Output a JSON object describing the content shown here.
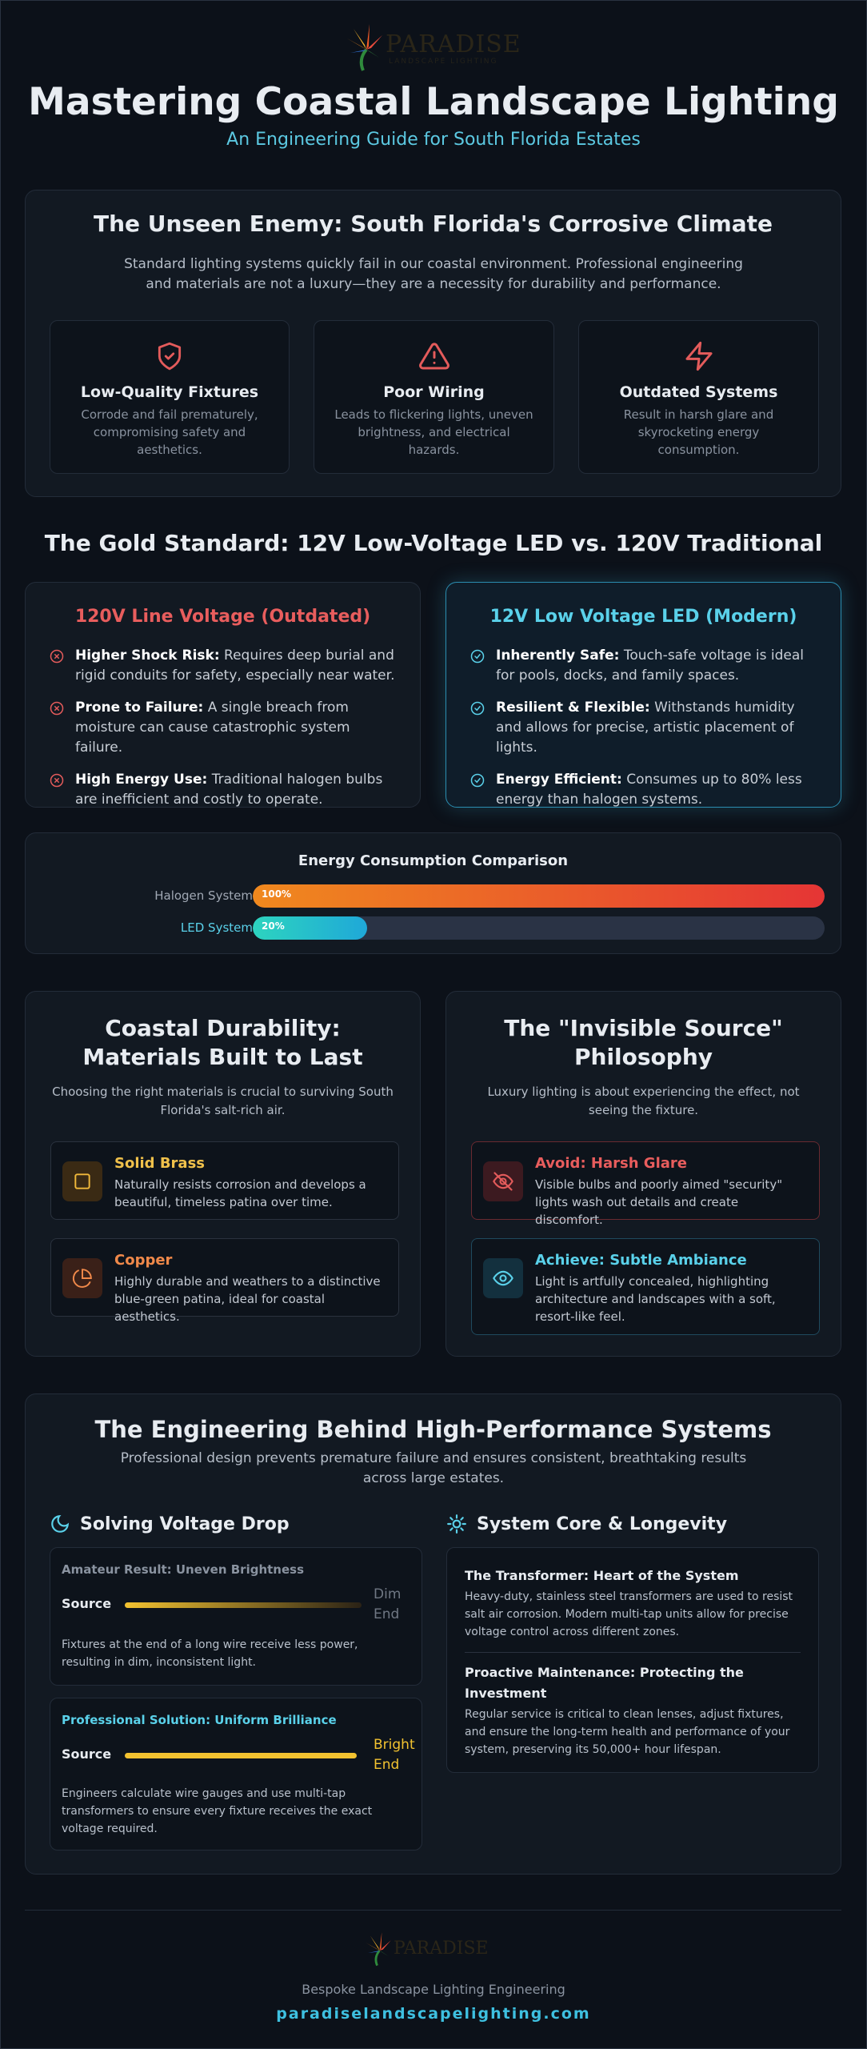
{
  "header": {
    "logo_name": "PARADISE",
    "logo_tagline": "LANDSCAPE LIGHTING",
    "title": "Mastering Coastal Landscape Lighting",
    "subtitle": "An Engineering Guide for South Florida Estates"
  },
  "climate": {
    "title": "The Unseen Enemy: South Florida's Corrosive Climate",
    "intro": "Standard lighting systems quickly fail in our coastal environment. Professional engineering and materials are not a luxury—they are a necessity for durability and performance.",
    "cards": [
      {
        "title": "Low-Quality Fixtures",
        "text": "Corrode and fail prematurely, compromising safety and aesthetics."
      },
      {
        "title": "Poor Wiring",
        "text": "Leads to flickering lights, uneven brightness, and electrical hazards."
      },
      {
        "title": "Outdated Systems",
        "text": "Result in harsh glare and skyrocketing energy consumption."
      }
    ]
  },
  "comparison": {
    "title": "The Gold Standard: 12V Low-Voltage LED vs. 120V Traditional",
    "traditional": {
      "title": "120V Line Voltage (Outdated)",
      "items": [
        {
          "label": "Higher Shock Risk:",
          "text": "Requires deep burial and rigid conduits for safety, especially near water."
        },
        {
          "label": "Prone to Failure:",
          "text": "A single breach from moisture can cause catastrophic system failure."
        },
        {
          "label": "High Energy Use:",
          "text": "Traditional halogen bulbs are inefficient and costly to operate."
        }
      ]
    },
    "led": {
      "title": "12V Low Voltage LED (Modern)",
      "items": [
        {
          "label": "Inherently Safe:",
          "text": "Touch-safe voltage is ideal for pools, docks, and family spaces."
        },
        {
          "label": "Resilient & Flexible:",
          "text": "Withstands humidity and allows for precise, artistic placement of lights."
        },
        {
          "label": "Energy Efficient:",
          "text": "Consumes up to 80% less energy than halogen systems."
        }
      ]
    }
  },
  "energy": {
    "title": "Energy Consumption Comparison",
    "xlim": [
      0,
      100
    ],
    "rows": [
      {
        "label": "Halogen System",
        "value": 100,
        "value_label": "100%"
      },
      {
        "label": "LED System",
        "value": 20,
        "value_label": "20%"
      }
    ]
  },
  "materials": {
    "title": "Coastal Durability: Materials Built to Last",
    "intro": "Choosing the right materials is crucial to surviving South Florida's salt-rich air.",
    "items": [
      {
        "title": "Solid Brass",
        "text": "Naturally resists corrosion and develops a beautiful, timeless patina over time."
      },
      {
        "title": "Copper",
        "text": "Highly durable and weathers to a distinctive blue-green patina, ideal for coastal aesthetics."
      }
    ]
  },
  "philosophy": {
    "title": "The \"Invisible Source\" Philosophy",
    "intro": "Luxury lighting is about experiencing the effect, not seeing the fixture.",
    "items": [
      {
        "title": "Avoid: Harsh Glare",
        "text": "Visible bulbs and poorly aimed \"security\" lights wash out details and create discomfort."
      },
      {
        "title": "Achieve: Subtle Ambiance",
        "text": "Light is artfully concealed, highlighting architecture and landscapes with a soft, resort-like feel."
      }
    ]
  },
  "engineering": {
    "title": "The Engineering Behind High-Performance Systems",
    "intro": "Professional design prevents premature failure and ensures consistent, breathtaking results across large estates.",
    "voltage": {
      "title": "Solving Voltage Drop",
      "amateur": {
        "title": "Amateur Result: Uneven Brightness",
        "source": "Source",
        "end": "Dim End",
        "text": "Fixtures at the end of a long wire receive less power, resulting in dim, inconsistent light."
      },
      "pro": {
        "title": "Professional Solution: Uniform Brilliance",
        "source": "Source",
        "end": "Bright End",
        "text": "Engineers calculate wire gauges and use multi-tap transformers to ensure every fixture receives the exact voltage required."
      }
    },
    "core": {
      "title": "System Core & Longevity",
      "items": [
        {
          "title": "The Transformer: Heart of the System",
          "text": "Heavy-duty, stainless steel transformers are used to resist salt air corrosion. Modern multi-tap units allow for precise voltage control across different zones."
        },
        {
          "title": "Proactive Maintenance: Protecting the Investment",
          "text": "Regular service is critical to clean lenses, adjust fixtures, and ensure the long-term health and performance of your system, preserving its 50,000+ hour lifespan."
        }
      ]
    }
  },
  "footer": {
    "tagline": "Bespoke Landscape Lighting Engineering",
    "url": "paradiselandscapelighting.com"
  }
}
